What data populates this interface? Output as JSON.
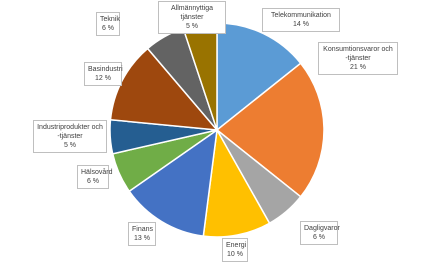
{
  "chart_data": {
    "type": "pie",
    "categories": [
      "Telekommunikation",
      "Konsumtionsvaror och -tjänster",
      "Dagligvaror",
      "Energi",
      "Finans",
      "Hälsovård",
      "Industriprodukter och -tjänster",
      "Basindustri",
      "Teknik",
      "Allmännyttiga tjänster"
    ],
    "values": [
      14,
      21,
      6,
      10,
      13,
      6,
      5,
      12,
      6,
      5
    ],
    "value_labels": [
      "14 %",
      "21 %",
      "6 %",
      "10 %",
      "13 %",
      "6 %",
      "5 %",
      "12 %",
      "6 %",
      "5 %"
    ],
    "colors": [
      "#5b9bd5",
      "#ed7d31",
      "#a5a5a5",
      "#ffc000",
      "#4472c4",
      "#70ad47",
      "#255e91",
      "#9e480e",
      "#636363",
      "#997300"
    ]
  }
}
